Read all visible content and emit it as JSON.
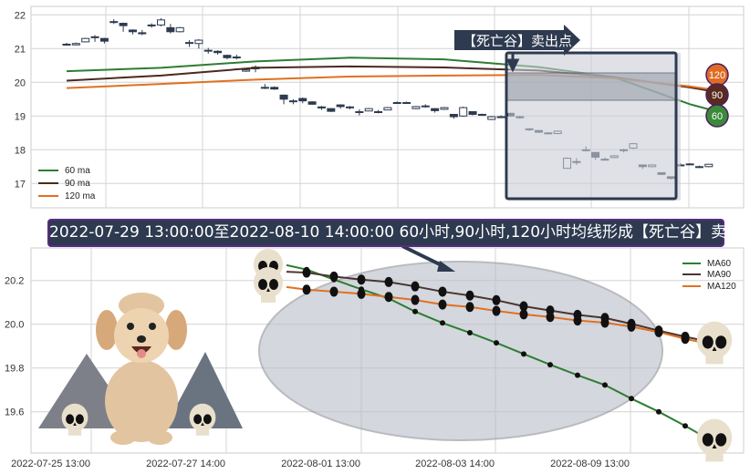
{
  "chart_data": [
    {
      "type": "candlestick",
      "ylim": [
        16.6,
        22.25
      ],
      "yticks": [
        "17",
        "18",
        "19",
        "20",
        "21",
        "22"
      ],
      "grid": true,
      "legend_position": "bottom-left",
      "legend": [
        "60 ma",
        "90 ma",
        "120 ma"
      ],
      "candles": [
        [
          21.13,
          21.13,
          21.17,
          21.09
        ],
        [
          21.11,
          21.15,
          21.18,
          21.1
        ],
        [
          21.2,
          21.3,
          21.32,
          21.19
        ],
        [
          21.34,
          21.35,
          21.4,
          21.2
        ],
        [
          21.3,
          21.22,
          21.32,
          21.15
        ],
        [
          21.8,
          21.8,
          21.87,
          21.73
        ],
        [
          21.75,
          21.68,
          21.77,
          21.5
        ],
        [
          21.55,
          21.5,
          21.57,
          21.42
        ],
        [
          21.47,
          21.44,
          21.55,
          21.4
        ],
        [
          21.7,
          21.7,
          21.75,
          21.62
        ],
        [
          21.7,
          21.85,
          21.9,
          21.66
        ],
        [
          21.62,
          21.5,
          21.73,
          21.45
        ],
        [
          21.5,
          21.62,
          21.64,
          21.48
        ],
        [
          21.18,
          21.18,
          21.25,
          21.05
        ],
        [
          21.15,
          21.25,
          21.28,
          21.0
        ],
        [
          20.95,
          20.95,
          21.02,
          20.85
        ],
        [
          20.92,
          20.88,
          20.95,
          20.82
        ],
        [
          20.8,
          20.73,
          20.82,
          20.68
        ],
        [
          20.75,
          20.75,
          20.82,
          20.68
        ],
        [
          20.33,
          20.37,
          20.39,
          20.31
        ],
        [
          20.4,
          20.45,
          20.5,
          20.3
        ],
        [
          19.85,
          19.85,
          19.95,
          19.8
        ],
        [
          19.85,
          19.8,
          19.88,
          19.78
        ],
        [
          19.62,
          19.5,
          19.64,
          19.35
        ],
        [
          19.45,
          19.45,
          19.5,
          19.35
        ],
        [
          19.52,
          19.45,
          19.55,
          19.38
        ],
        [
          19.42,
          19.35,
          19.44,
          19.33
        ],
        [
          19.27,
          19.24,
          19.3,
          19.18
        ],
        [
          19.22,
          19.14,
          19.23,
          19.12
        ],
        [
          19.33,
          19.28,
          19.35,
          19.22
        ],
        [
          19.27,
          19.27,
          19.3,
          19.2
        ],
        [
          19.13,
          19.13,
          19.2,
          19.02
        ],
        [
          19.15,
          19.22,
          19.24,
          19.14
        ],
        [
          19.13,
          19.13,
          19.18,
          19.08
        ],
        [
          19.18,
          19.25,
          19.27,
          19.17
        ],
        [
          19.4,
          19.4,
          19.43,
          19.4
        ],
        [
          19.4,
          19.4,
          19.43,
          19.4
        ],
        [
          19.22,
          19.28,
          19.3,
          19.2
        ],
        [
          19.3,
          19.3,
          19.35,
          19.25
        ],
        [
          19.22,
          19.16,
          19.23,
          19.1
        ],
        [
          19.2,
          19.25,
          19.27,
          19.18
        ],
        [
          19.05,
          18.98,
          19.06,
          18.92
        ],
        [
          19.0,
          19.25,
          19.28,
          18.98
        ],
        [
          19.13,
          19.05,
          19.14,
          19.02
        ],
        [
          19.05,
          19.05,
          19.07,
          19.02
        ],
        [
          18.9,
          18.98,
          19.0,
          18.88
        ],
        [
          18.98,
          18.98,
          19.02,
          18.95
        ],
        [
          19.08,
          19.0,
          19.1,
          18.98
        ],
        [
          18.98,
          18.95,
          19.0,
          18.92
        ],
        [
          18.62,
          18.62,
          18.64,
          18.56
        ],
        [
          18.57,
          18.52,
          18.58,
          18.5
        ],
        [
          18.5,
          18.5,
          18.52,
          18.46
        ],
        [
          18.48,
          18.55,
          18.57,
          18.46
        ],
        [
          17.45,
          17.75,
          17.77,
          17.44
        ],
        [
          17.65,
          17.65,
          17.75,
          17.55
        ],
        [
          18.0,
          18.0,
          18.1,
          17.95
        ],
        [
          17.92,
          17.78,
          17.93,
          17.7
        ],
        [
          17.72,
          17.72,
          17.77,
          17.68
        ],
        [
          17.77,
          17.82,
          17.84,
          17.75
        ],
        [
          18.0,
          18.0,
          18.03,
          17.92
        ],
        [
          18.05,
          18.18,
          18.2,
          18.02
        ],
        [
          17.55,
          17.5,
          17.56,
          17.43
        ],
        [
          17.5,
          17.55,
          17.57,
          17.48
        ],
        [
          17.32,
          17.27,
          17.33,
          17.25
        ],
        [
          17.2,
          17.15,
          17.21,
          17.12
        ],
        [
          17.55,
          17.55,
          17.6,
          17.52
        ],
        [
          17.58,
          17.58,
          17.6,
          17.56
        ],
        [
          17.5,
          17.5,
          17.53,
          17.46
        ],
        [
          17.5,
          17.57,
          17.58,
          17.48
        ]
      ],
      "series": [
        {
          "name": "60 ma",
          "color": "#2e7d32",
          "points": [
            [
              0,
              20.33
            ],
            [
              10,
              20.43
            ],
            [
              20,
              20.62
            ],
            [
              30,
              20.73
            ],
            [
              40,
              20.68
            ],
            [
              50,
              20.45
            ],
            [
              58,
              20.15
            ],
            [
              66,
              19.35
            ],
            [
              68,
              19.2
            ]
          ]
        },
        {
          "name": "90 ma",
          "color": "#4a2a1f",
          "points": [
            [
              0,
              20.05
            ],
            [
              10,
              20.2
            ],
            [
              20,
              20.43
            ],
            [
              30,
              20.47
            ],
            [
              40,
              20.44
            ],
            [
              50,
              20.35
            ],
            [
              58,
              20.15
            ],
            [
              66,
              19.85
            ],
            [
              68,
              19.75
            ]
          ]
        },
        {
          "name": "120 ma",
          "color": "#e07020",
          "points": [
            [
              0,
              19.83
            ],
            [
              10,
              19.95
            ],
            [
              20,
              20.08
            ],
            [
              30,
              20.17
            ],
            [
              40,
              20.2
            ],
            [
              50,
              20.22
            ],
            [
              58,
              20.12
            ],
            [
              66,
              19.88
            ],
            [
              68,
              19.8
            ]
          ]
        }
      ],
      "annotation": "【死亡谷】卖出点",
      "end_badges": [
        {
          "label": "120",
          "color": "#e06b25",
          "value": 20.2
        },
        {
          "label": "90",
          "color": "#5a2a1f",
          "value": 19.93
        },
        {
          "label": "60",
          "color": "#3a8a3a",
          "value": 19.0
        }
      ]
    },
    {
      "type": "line",
      "title": "2022-07-29 13:00:00至2022-08-10 14:00:00 60小时,90小时,120小时均线形成【死亡谷】卖出点",
      "ylim": [
        19.42,
        20.33
      ],
      "yticks": [
        "19.6",
        "19.8",
        "20.0",
        "20.2"
      ],
      "xticks": [
        "2022-07-25 13:00",
        "2022-07-27 14:00",
        "2022-08-01 13:00",
        "2022-08-03 14:00",
        "2022-08-09 13:00"
      ],
      "grid": true,
      "legend_position": "top-right",
      "series": [
        {
          "name": "MA60",
          "color": "#2e7d32",
          "start": 20.27,
          "end": 19.5,
          "values": [
            20.25,
            20.204,
            20.16,
            20.118,
            20.058,
            20.006,
            19.961,
            19.915,
            19.864,
            19.815,
            19.767,
            19.722,
            19.66,
            19.6,
            19.535
          ]
        },
        {
          "name": "MA90",
          "color": "#4a3530",
          "start": 20.24,
          "end": 19.93,
          "values": [
            20.236,
            20.218,
            20.204,
            20.193,
            20.173,
            20.149,
            20.131,
            20.11,
            20.082,
            20.063,
            20.043,
            20.029,
            20.002,
            19.971,
            19.943
          ]
        },
        {
          "name": "MA120",
          "color": "#e07020",
          "start": 20.17,
          "end": 19.92,
          "values": [
            20.158,
            20.149,
            20.139,
            20.125,
            20.111,
            20.09,
            20.079,
            20.061,
            20.045,
            20.033,
            20.017,
            20.007,
            19.989,
            19.964,
            19.933
          ]
        }
      ]
    }
  ]
}
